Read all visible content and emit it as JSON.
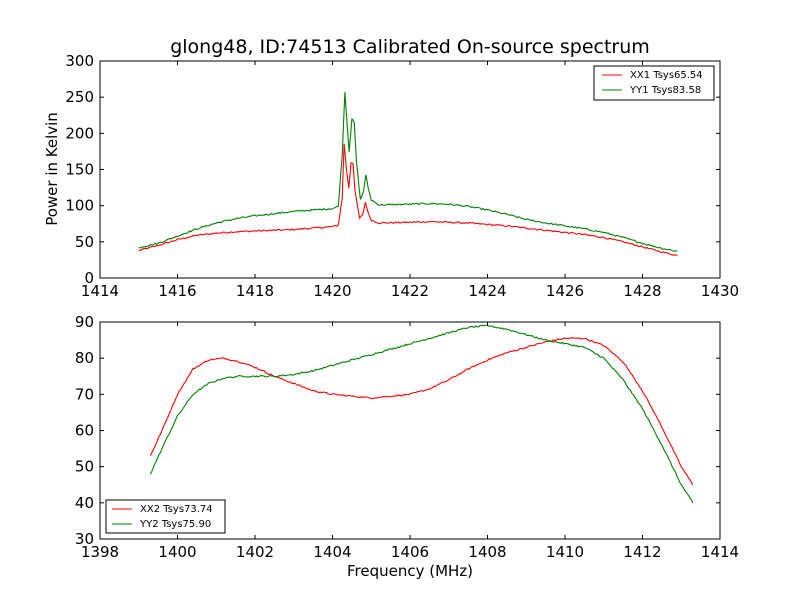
{
  "chart_data": [
    {
      "type": "line",
      "title": "glong48, ID:74513 Calibrated On-source spectrum",
      "xlabel": "",
      "ylabel": "Power in Kelvin",
      "xlim": [
        1414,
        1430
      ],
      "ylim": [
        0,
        300
      ],
      "x_ticks": [
        "1414",
        "1416",
        "1418",
        "1420",
        "1422",
        "1424",
        "1426",
        "1428",
        "1430"
      ],
      "y_ticks": [
        "0",
        "50",
        "100",
        "150",
        "200",
        "250",
        "300"
      ],
      "grid": false,
      "legend_position": "top-right",
      "series": [
        {
          "name": "XX1 Tsys65.54",
          "color": "#ff0000",
          "points": [
            [
              1415.0,
              38
            ],
            [
              1415.5,
              45
            ],
            [
              1416.0,
              53
            ],
            [
              1416.5,
              59
            ],
            [
              1417.0,
              62
            ],
            [
              1417.5,
              64
            ],
            [
              1418.0,
              65
            ],
            [
              1418.5,
              66
            ],
            [
              1419.0,
              67
            ],
            [
              1419.5,
              69
            ],
            [
              1420.0,
              71
            ],
            [
              1420.15,
              73
            ],
            [
              1420.25,
              110
            ],
            [
              1420.3,
              186
            ],
            [
              1420.36,
              150
            ],
            [
              1420.42,
              125
            ],
            [
              1420.48,
              160
            ],
            [
              1420.53,
              158
            ],
            [
              1420.58,
              120
            ],
            [
              1420.7,
              82
            ],
            [
              1420.78,
              88
            ],
            [
              1420.85,
              105
            ],
            [
              1420.92,
              90
            ],
            [
              1421.0,
              80
            ],
            [
              1421.2,
              76
            ],
            [
              1422.0,
              77
            ],
            [
              1422.5,
              78
            ],
            [
              1423.0,
              77
            ],
            [
              1423.5,
              76
            ],
            [
              1424.0,
              74
            ],
            [
              1424.5,
              72
            ],
            [
              1425.0,
              69
            ],
            [
              1425.5,
              66
            ],
            [
              1426.0,
              63
            ],
            [
              1426.5,
              60
            ],
            [
              1427.0,
              56
            ],
            [
              1427.5,
              50
            ],
            [
              1428.0,
              43
            ],
            [
              1428.5,
              36
            ],
            [
              1428.9,
              31
            ]
          ]
        },
        {
          "name": "YY1 Tsys83.58",
          "color": "#008000",
          "points": [
            [
              1415.0,
              42
            ],
            [
              1415.5,
              48
            ],
            [
              1416.0,
              58
            ],
            [
              1416.5,
              68
            ],
            [
              1417.0,
              76
            ],
            [
              1417.5,
              82
            ],
            [
              1418.0,
              86
            ],
            [
              1418.5,
              89
            ],
            [
              1419.0,
              92
            ],
            [
              1419.5,
              94
            ],
            [
              1420.0,
              96
            ],
            [
              1420.15,
              99
            ],
            [
              1420.25,
              170
            ],
            [
              1420.32,
              258
            ],
            [
              1420.38,
              210
            ],
            [
              1420.43,
              175
            ],
            [
              1420.5,
              220
            ],
            [
              1420.56,
              215
            ],
            [
              1420.62,
              160
            ],
            [
              1420.72,
              108
            ],
            [
              1420.8,
              120
            ],
            [
              1420.86,
              142
            ],
            [
              1420.92,
              125
            ],
            [
              1421.0,
              108
            ],
            [
              1421.2,
              101
            ],
            [
              1422.0,
              102
            ],
            [
              1422.5,
              103
            ],
            [
              1423.0,
              102
            ],
            [
              1423.5,
              99
            ],
            [
              1424.0,
              94
            ],
            [
              1424.5,
              88
            ],
            [
              1425.0,
              81
            ],
            [
              1425.5,
              76
            ],
            [
              1426.0,
              72
            ],
            [
              1426.5,
              68
            ],
            [
              1427.0,
              63
            ],
            [
              1427.5,
              56
            ],
            [
              1428.0,
              48
            ],
            [
              1428.5,
              41
            ],
            [
              1428.9,
              37
            ]
          ]
        }
      ]
    },
    {
      "type": "line",
      "title": "",
      "xlabel": "Frequency (MHz)",
      "ylabel": "",
      "xlim": [
        1398,
        1414
      ],
      "ylim": [
        30,
        90
      ],
      "x_ticks": [
        "1398",
        "1400",
        "1402",
        "1404",
        "1406",
        "1408",
        "1410",
        "1412",
        "1414"
      ],
      "y_ticks": [
        "30",
        "40",
        "50",
        "60",
        "70",
        "80",
        "90"
      ],
      "grid": false,
      "legend_position": "bottom-left",
      "series": [
        {
          "name": "XX2 Tsys73.74",
          "color": "#ff0000",
          "points": [
            [
              1399.3,
              53
            ],
            [
              1399.6,
              60
            ],
            [
              1400.0,
              70
            ],
            [
              1400.4,
              77
            ],
            [
              1400.8,
              79.5
            ],
            [
              1401.2,
              80
            ],
            [
              1401.6,
              79
            ],
            [
              1402.0,
              77.5
            ],
            [
              1402.5,
              75
            ],
            [
              1403.0,
              73
            ],
            [
              1403.5,
              71
            ],
            [
              1404.0,
              70
            ],
            [
              1404.5,
              69.5
            ],
            [
              1405.0,
              69
            ],
            [
              1405.5,
              69.5
            ],
            [
              1406.0,
              70
            ],
            [
              1406.5,
              71.5
            ],
            [
              1407.0,
              74
            ],
            [
              1407.5,
              77
            ],
            [
              1408.0,
              79.5
            ],
            [
              1408.5,
              81.5
            ],
            [
              1409.0,
              83
            ],
            [
              1409.5,
              84.5
            ],
            [
              1410.0,
              85.5
            ],
            [
              1410.5,
              85.5
            ],
            [
              1411.0,
              83.5
            ],
            [
              1411.5,
              79
            ],
            [
              1412.0,
              71
            ],
            [
              1412.5,
              61
            ],
            [
              1413.0,
              50
            ],
            [
              1413.3,
              45
            ]
          ]
        },
        {
          "name": "YY2 Tsys75.90",
          "color": "#008000",
          "points": [
            [
              1399.3,
              48
            ],
            [
              1399.6,
              55
            ],
            [
              1400.0,
              64
            ],
            [
              1400.4,
              70
            ],
            [
              1400.8,
              73
            ],
            [
              1401.2,
              74.5
            ],
            [
              1401.6,
              75
            ],
            [
              1402.0,
              75
            ],
            [
              1402.5,
              75
            ],
            [
              1403.0,
              75.5
            ],
            [
              1403.5,
              76.5
            ],
            [
              1404.0,
              78
            ],
            [
              1404.5,
              79.5
            ],
            [
              1405.0,
              81
            ],
            [
              1405.5,
              82.5
            ],
            [
              1406.0,
              84
            ],
            [
              1406.5,
              85.5
            ],
            [
              1407.0,
              87
            ],
            [
              1407.5,
              88.5
            ],
            [
              1408.0,
              89
            ],
            [
              1408.5,
              88
            ],
            [
              1409.0,
              86.5
            ],
            [
              1409.5,
              85
            ],
            [
              1410.0,
              84
            ],
            [
              1410.5,
              83
            ],
            [
              1411.0,
              80
            ],
            [
              1411.5,
              74
            ],
            [
              1412.0,
              66
            ],
            [
              1412.5,
              56
            ],
            [
              1413.0,
              45
            ],
            [
              1413.3,
              40
            ]
          ]
        }
      ]
    }
  ]
}
